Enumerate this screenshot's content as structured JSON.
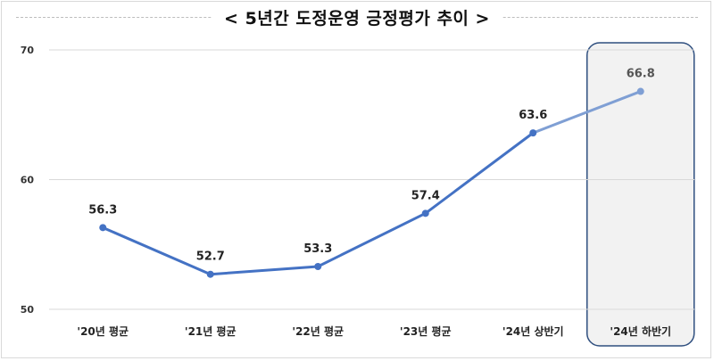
{
  "chart_data": {
    "type": "line",
    "title": "< 5년간  도정운영  긍정평가  추이 >",
    "categories": [
      "'20년 평균",
      "'21년 평균",
      "'22년 평균",
      "'23년 평균",
      "'24년 상반기",
      "'24년 하반기"
    ],
    "series": [
      {
        "values": [
          56.3,
          52.7,
          53.3,
          57.4,
          63.6,
          66.8
        ]
      }
    ],
    "data_labels": [
      "56.3",
      "52.7",
      "53.3",
      "57.4",
      "63.6",
      "66.8"
    ],
    "ylim": [
      50,
      70
    ],
    "yticks": [
      "50",
      "60",
      "70"
    ],
    "grid": true,
    "highlight_category": "'24년 하반기",
    "colors": {
      "line": "#4472C4",
      "line_last": "#7F9FD4",
      "highlight_fill": "#F2F2F2",
      "highlight_border": "#2F4F7F",
      "grid": "#D9D9D9"
    }
  }
}
